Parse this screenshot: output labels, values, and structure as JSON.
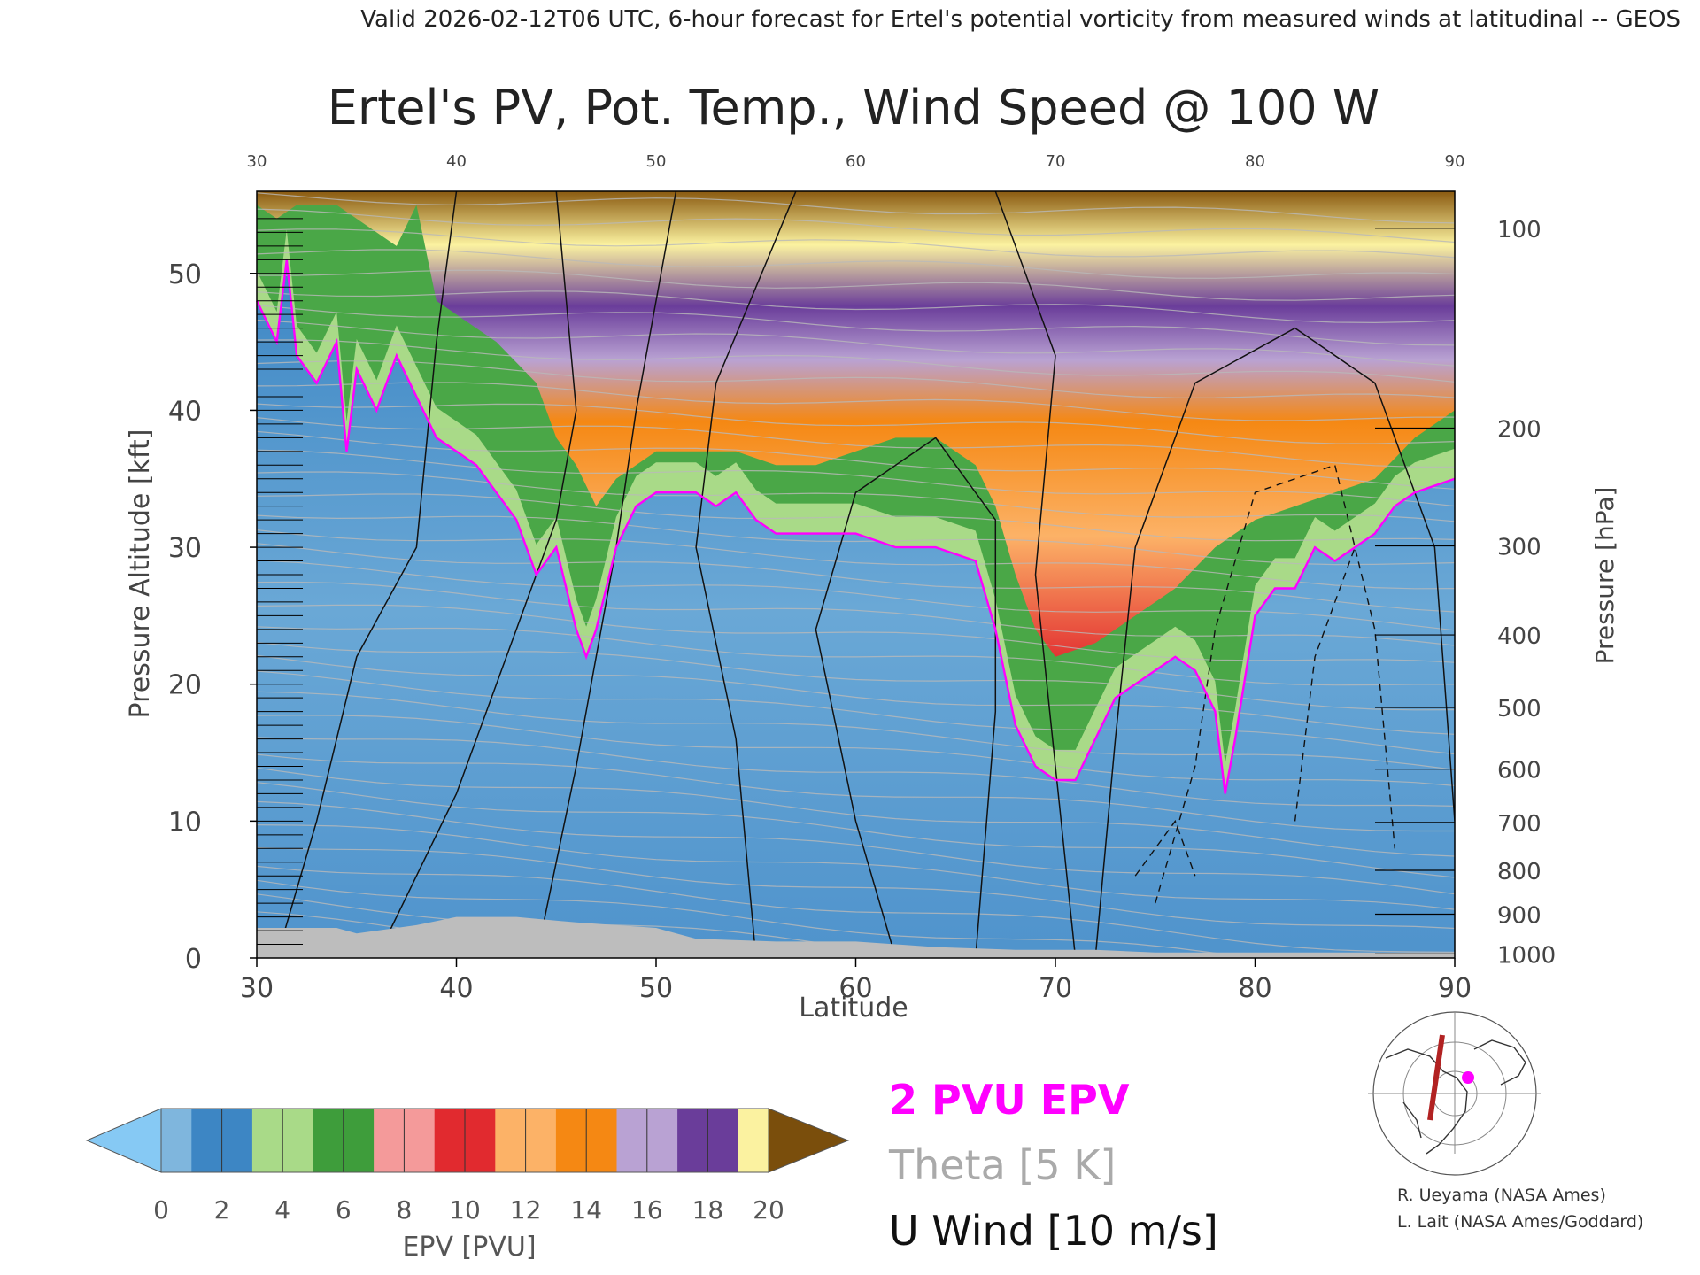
{
  "header": {
    "valid_line": "Valid 2026-02-12T06 UTC, 6-hour forecast for Ertel's potential vorticity from measured winds at latitudinal -- GEOS"
  },
  "chart_data": {
    "type": "heatmap",
    "title": "Ertel's PV, Pot. Temp., Wind Speed @ 100 W",
    "xlabel": "Latitude",
    "ylabel_left": "Pressure Altitude [kft]",
    "ylabel_right": "Pressure [hPa]",
    "xlim": [
      30,
      90
    ],
    "ylim_kft": [
      0,
      56
    ],
    "x_ticks": [
      30,
      40,
      50,
      60,
      70,
      80,
      90
    ],
    "y_ticks_kft": [
      0,
      10,
      20,
      30,
      40,
      50
    ],
    "pressure_ticks": [
      {
        "label": "100",
        "kft": 53.3
      },
      {
        "label": "200",
        "kft": 38.7
      },
      {
        "label": "300",
        "kft": 30.1
      },
      {
        "label": "400",
        "kft": 23.6
      },
      {
        "label": "500",
        "kft": 18.3
      },
      {
        "label": "600",
        "kft": 13.8
      },
      {
        "label": "700",
        "kft": 9.9
      },
      {
        "label": "800",
        "kft": 6.4
      },
      {
        "label": "900",
        "kft": 3.2
      },
      {
        "label": "1000",
        "kft": 0.3
      }
    ],
    "pv_2pvu_boundary": [
      [
        30,
        48
      ],
      [
        31,
        45
      ],
      [
        31.5,
        51
      ],
      [
        32,
        44
      ],
      [
        33,
        42
      ],
      [
        34,
        45
      ],
      [
        34.5,
        37
      ],
      [
        35,
        43
      ],
      [
        36,
        40
      ],
      [
        37,
        44
      ],
      [
        38,
        41
      ],
      [
        39,
        38
      ],
      [
        40,
        37
      ],
      [
        41,
        36
      ],
      [
        42,
        34
      ],
      [
        43,
        32
      ],
      [
        44,
        28
      ],
      [
        45,
        30
      ],
      [
        46,
        24
      ],
      [
        46.5,
        22
      ],
      [
        47,
        24
      ],
      [
        48,
        30
      ],
      [
        49,
        33
      ],
      [
        50,
        34
      ],
      [
        51,
        34
      ],
      [
        52,
        34
      ],
      [
        53,
        33
      ],
      [
        54,
        34
      ],
      [
        55,
        32
      ],
      [
        56,
        31
      ],
      [
        58,
        31
      ],
      [
        60,
        31
      ],
      [
        62,
        30
      ],
      [
        64,
        30
      ],
      [
        66,
        29
      ],
      [
        67,
        24
      ],
      [
        68,
        17
      ],
      [
        69,
        14
      ],
      [
        70,
        13
      ],
      [
        71,
        13
      ],
      [
        72,
        16
      ],
      [
        73,
        19
      ],
      [
        74,
        20
      ],
      [
        75,
        21
      ],
      [
        76,
        22
      ],
      [
        77,
        21
      ],
      [
        78,
        18
      ],
      [
        78.5,
        12
      ],
      [
        79,
        16
      ],
      [
        80,
        25
      ],
      [
        81,
        27
      ],
      [
        82,
        27
      ],
      [
        83,
        30
      ],
      [
        84,
        29
      ],
      [
        85,
        30
      ],
      [
        86,
        31
      ],
      [
        87,
        33
      ],
      [
        88,
        34
      ],
      [
        90,
        35
      ]
    ],
    "tropo_cap_boundary": [
      [
        30,
        55
      ],
      [
        31,
        54
      ],
      [
        32,
        55
      ],
      [
        34,
        55
      ],
      [
        36,
        53
      ],
      [
        37,
        52
      ],
      [
        38,
        55
      ],
      [
        39,
        48
      ],
      [
        40,
        47
      ],
      [
        42,
        45
      ],
      [
        44,
        42
      ],
      [
        45,
        38
      ],
      [
        46,
        36
      ],
      [
        47,
        33
      ],
      [
        48,
        35
      ],
      [
        50,
        37
      ],
      [
        52,
        37
      ],
      [
        54,
        37
      ],
      [
        56,
        36
      ],
      [
        58,
        36
      ],
      [
        60,
        37
      ],
      [
        62,
        38
      ],
      [
        64,
        38
      ],
      [
        66,
        36
      ],
      [
        67,
        33
      ],
      [
        68,
        28
      ],
      [
        69,
        24
      ],
      [
        70,
        22
      ],
      [
        72,
        23
      ],
      [
        74,
        25
      ],
      [
        76,
        27
      ],
      [
        78,
        30
      ],
      [
        80,
        32
      ],
      [
        82,
        33
      ],
      [
        84,
        34
      ],
      [
        86,
        35
      ],
      [
        88,
        38
      ],
      [
        90,
        40
      ]
    ],
    "colorbar": {
      "label": "EPV [PVU]",
      "ticks": [
        0,
        2,
        4,
        6,
        8,
        10,
        12,
        14,
        16,
        18,
        20
      ],
      "colors": [
        "#7fb6dd",
        "#3d86c4",
        "#a9da88",
        "#3e9d3b",
        "#f49a9a",
        "#e12a2f",
        "#fcb267",
        "#f58813",
        "#b9a2d3",
        "#6a3d9a",
        "#fbf2a0",
        "#8a5a10"
      ],
      "under_color": "#86c9f4",
      "over_color": "#7a4e0c"
    },
    "legend": {
      "epv": "2 PVU EPV",
      "theta": "Theta [5 K]",
      "uwind": "U Wind [10 m/s]",
      "epv_color": "#ff00ff",
      "theta_color": "#aaaaaa",
      "uwind_color": "#111111"
    }
  },
  "credits": {
    "line1": "R. Ueyama (NASA Ames)",
    "line2": "L. Lait (NASA Ames/Goddard)"
  }
}
